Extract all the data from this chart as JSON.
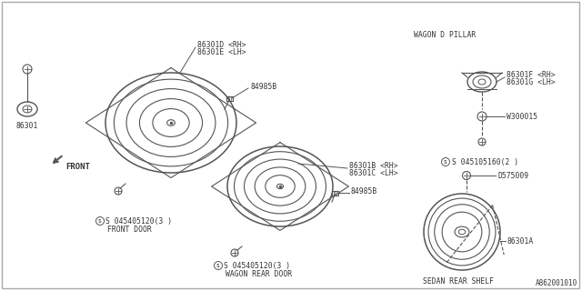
{
  "bg_color": "#ffffff",
  "line_color": "#555555",
  "text_color": "#333333",
  "doc_number": "A862001010",
  "labels": {
    "front_door_speaker_d": "86301D <RH>",
    "front_door_speaker_e": "86301E <LH>",
    "front_door_connector": "84985B",
    "front_door_bolt": "S 045405120(3 )",
    "front_door_label": "FRONT DOOR",
    "wagon_rear_b": "86301B <RH>",
    "wagon_rear_c": "86301C <LH>",
    "wagon_rear_connector": "84985B",
    "wagon_rear_bolt": "S 045405120(3 )",
    "wagon_rear_label": "WAGON REAR DOOR",
    "single_speaker": "86301",
    "wagon_pillar_label": "WAGON D PILLAR",
    "wagon_pillar_f": "86301F <RH>",
    "wagon_pillar_g": "86301G <LH>",
    "wagon_pillar_bolt": "W300015",
    "wagon_pillar_screw": "S 045105160(2 )",
    "sedan_screw": "D575009",
    "sedan_speaker": "86301A",
    "sedan_label": "SEDAN REAR SHELF",
    "front_label": "FRONT"
  }
}
